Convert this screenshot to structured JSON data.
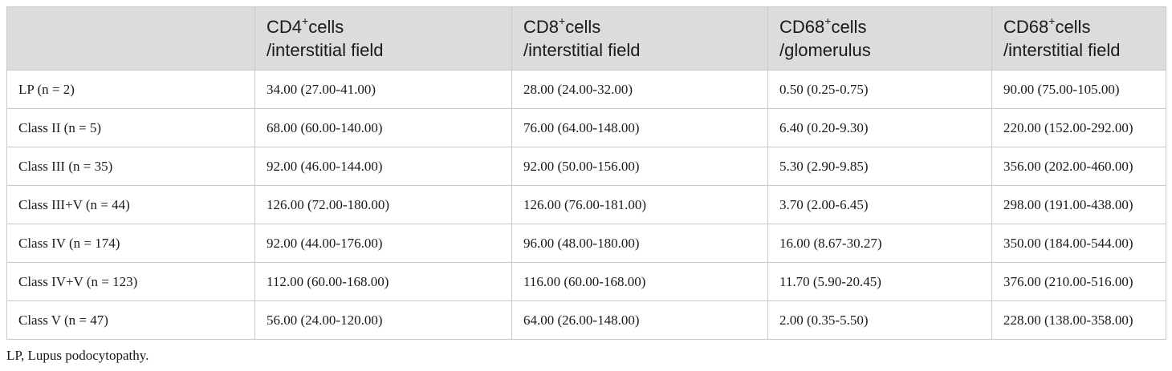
{
  "table": {
    "headers": [
      {
        "label": ""
      },
      {
        "marker": "CD4",
        "sup": "+",
        "line1_rest": "cells",
        "line2": "/interstitial field"
      },
      {
        "marker": "CD8",
        "sup": "+",
        "line1_rest": "cells",
        "line2": "/interstitial field"
      },
      {
        "marker": "CD68",
        "sup": "+",
        "line1_rest": "cells",
        "line2": "/glomerulus"
      },
      {
        "marker": "CD68",
        "sup": "+",
        "line1_rest": "cells",
        "line2": "/interstitial field"
      }
    ],
    "rows": [
      [
        "LP (n = 2)",
        "34.00 (27.00-41.00)",
        "28.00 (24.00-32.00)",
        "0.50 (0.25-0.75)",
        "90.00 (75.00-105.00)"
      ],
      [
        "Class II (n = 5)",
        "68.00 (60.00-140.00)",
        "76.00 (64.00-148.00)",
        "6.40 (0.20-9.30)",
        "220.00 (152.00-292.00)"
      ],
      [
        "Class III (n = 35)",
        "92.00 (46.00-144.00)",
        "92.00 (50.00-156.00)",
        "5.30 (2.90-9.85)",
        "356.00 (202.00-460.00)"
      ],
      [
        "Class III+V (n = 44)",
        "126.00 (72.00-180.00)",
        "126.00 (76.00-181.00)",
        "3.70 (2.00-6.45)",
        "298.00 (191.00-438.00)"
      ],
      [
        "Class IV (n = 174)",
        "92.00 (44.00-176.00)",
        "96.00 (48.00-180.00)",
        "16.00 (8.67-30.27)",
        "350.00 (184.00-544.00)"
      ],
      [
        "Class IV+V (n = 123)",
        "112.00 (60.00-168.00)",
        "116.00 (60.00-168.00)",
        "11.70 (5.90-20.45)",
        "376.00 (210.00-516.00)"
      ],
      [
        "Class V (n = 47)",
        "56.00 (24.00-120.00)",
        "64.00 (26.00-148.00)",
        "2.00 (0.35-5.50)",
        "228.00 (138.00-358.00)"
      ]
    ]
  },
  "footnote": "LP, Lupus podocytopathy.",
  "colors": {
    "header_bg": "#dcdcdc",
    "border": "#c9c9c9",
    "text": "#1a1a1a"
  }
}
